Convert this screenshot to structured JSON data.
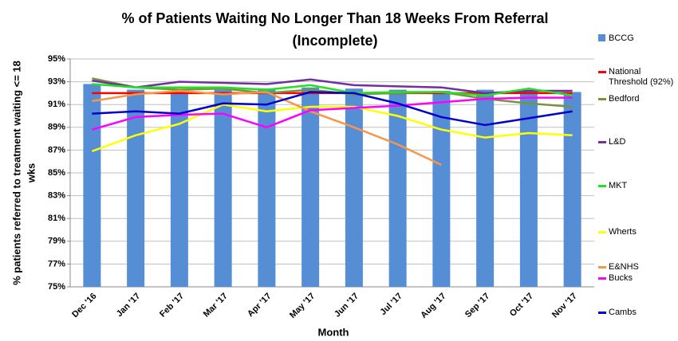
{
  "chart_data": {
    "type": "bar",
    "title": [
      "% of Patients Waiting No Longer Than 18 Weeks From Referral",
      "(Incomplete)"
    ],
    "x_label": "Month",
    "y_label": [
      "% patients referred to treatment  waiting <= 18",
      "wks"
    ],
    "categories": [
      "Dec '16",
      "Jan '17",
      "Feb '17",
      "Mar '17",
      "Apr '17",
      "May '17",
      "Jun '17",
      "Jul '17",
      "Aug '17",
      "Sep '17",
      "Oct '17",
      "Nov '17"
    ],
    "ylim": [
      75,
      95
    ],
    "yticks": [
      {
        "value": 75,
        "label": "75%"
      },
      {
        "value": 77,
        "label": "77%"
      },
      {
        "value": 79,
        "label": "79%"
      },
      {
        "value": 81,
        "label": "81%"
      },
      {
        "value": 83,
        "label": "83%"
      },
      {
        "value": 85,
        "label": "85%"
      },
      {
        "value": 87,
        "label": "87%"
      },
      {
        "value": 89,
        "label": "89%"
      },
      {
        "value": 91,
        "label": "91%"
      },
      {
        "value": 93,
        "label": "93%"
      },
      {
        "value": 95,
        "label": "95%"
      }
    ],
    "grid": true,
    "legend": "right",
    "series": [
      {
        "name": "BCCG",
        "type": "bar",
        "color": "#558ed5",
        "values": [
          92.8,
          92.3,
          92.1,
          92.3,
          92.4,
          92.5,
          92.4,
          92.3,
          92.2,
          92.3,
          92.2,
          92.1
        ]
      },
      {
        "name": "National Threshold (92%)",
        "type": "line",
        "color": "#ff0000",
        "values": [
          92,
          92,
          92,
          92,
          92,
          92,
          92,
          92,
          92,
          92,
          92,
          92
        ]
      },
      {
        "name": "Bedford",
        "type": "line",
        "color": "#77933c",
        "values": [
          93.3,
          92.5,
          92.3,
          92.4,
          92.0,
          92.3,
          91.9,
          92.0,
          92.1,
          91.5,
          91.1,
          90.8
        ]
      },
      {
        "name": "L&D",
        "type": "line",
        "color": "#7030a0",
        "values": [
          93.1,
          92.5,
          93.0,
          92.9,
          92.8,
          93.2,
          92.7,
          92.6,
          92.5,
          92.0,
          92.2,
          92.2
        ]
      },
      {
        "name": "MKT",
        "type": "line",
        "color": "#22e022",
        "values": [
          92.8,
          92.5,
          92.5,
          92.5,
          92.3,
          92.7,
          92.0,
          92.1,
          92.1,
          91.8,
          92.4,
          91.8
        ]
      },
      {
        "name": "Wherts",
        "type": "line",
        "color": "#ffff00",
        "values": [
          86.9,
          88.3,
          89.3,
          91.0,
          90.4,
          90.8,
          90.8,
          90.0,
          88.8,
          88.1,
          88.5,
          88.3
        ]
      },
      {
        "name": "E&NHS",
        "type": "line",
        "color": "#f79646",
        "values": [
          91.3,
          91.9,
          92.2,
          91.9,
          92.1,
          90.4,
          89.0,
          87.5,
          85.7,
          null,
          null,
          null
        ]
      },
      {
        "name": "Bucks",
        "type": "line",
        "color": "#ff00ff",
        "values": [
          88.8,
          89.9,
          90.1,
          90.2,
          89.0,
          90.5,
          90.7,
          90.9,
          91.2,
          91.5,
          91.6,
          91.6
        ]
      },
      {
        "name": "Cambs",
        "type": "line",
        "color": "#0000cc",
        "values": [
          90.2,
          90.4,
          90.2,
          91.1,
          91.0,
          92.1,
          92.0,
          91.1,
          89.9,
          89.2,
          89.8,
          90.4
        ]
      }
    ]
  }
}
